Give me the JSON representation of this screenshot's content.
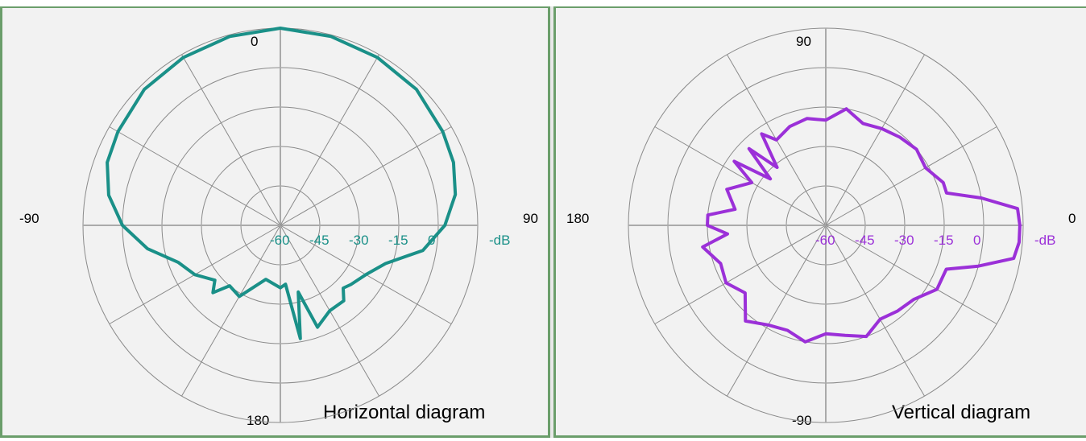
{
  "chart_data": [
    {
      "type": "polar-line",
      "title": "Horizontal diagram",
      "angle_labels": {
        "top": "0",
        "left": "-90",
        "right": "90",
        "bottom": "180"
      },
      "radial_ticks": [
        "-60",
        "-45",
        "-30",
        "-15",
        "0"
      ],
      "radial_unit": "-dB",
      "rlim": [
        -60,
        0
      ],
      "grid": true,
      "series": [
        {
          "color": "#1a9088",
          "angle_deg": [
            -180,
            -165,
            -150,
            -140,
            -135,
            -130,
            -120,
            -110,
            -100,
            -90,
            -80,
            -70,
            -60,
            -45,
            -30,
            -15,
            0,
            15,
            30,
            45,
            60,
            70,
            80,
            90,
            100,
            110,
            120,
            130,
            135,
            140,
            150,
            160,
            165,
            170,
            175,
            180
          ],
          "db": [
            -41,
            -43,
            -35,
            -36,
            -31,
            -34,
            -30,
            -27,
            -19,
            -12,
            -7,
            -4,
            -3,
            -1.5,
            -1,
            -0.5,
            0,
            -0.5,
            -1,
            -1.5,
            -3,
            -4,
            -6,
            -10,
            -16,
            -26,
            -30,
            -32,
            -33,
            -30,
            -30,
            -27,
            -39,
            -25,
            -42,
            -41
          ]
        }
      ]
    },
    {
      "type": "polar-line",
      "title": "Vertical diagram",
      "angle_labels": {
        "top": "90",
        "left": "180",
        "right": "0",
        "bottom": "-90"
      },
      "radial_ticks": [
        "-60",
        "-45",
        "-30",
        "-15",
        "0"
      ],
      "radial_unit": "-dB",
      "rlim": [
        -60,
        0
      ],
      "grid": true,
      "series": [
        {
          "color": "#9b30d8",
          "angle_deg": [
            0,
            5,
            10,
            15,
            20,
            30,
            40,
            50,
            60,
            70,
            80,
            90,
            100,
            110,
            120,
            125,
            130,
            135,
            140,
            145,
            150,
            160,
            170,
            175,
            180,
            185,
            190,
            200,
            210,
            220,
            230,
            240,
            250,
            260,
            270,
            280,
            290,
            300,
            310,
            320,
            330,
            340,
            345,
            350,
            355
          ],
          "db": [
            -1,
            -1.5,
            -12,
            -22,
            -22,
            -25,
            -24,
            -25,
            -26,
            -27,
            -24,
            -28,
            -27,
            -28,
            -30,
            -26,
            -37,
            -27,
            -38,
            -26,
            -34,
            -28,
            -32,
            -24,
            -24,
            -30,
            -22,
            -26,
            -25,
            -28,
            -22,
            -25,
            -26,
            -24,
            -27,
            -26,
            -24,
            -27,
            -26,
            -25,
            -21,
            -21,
            -12,
            -2,
            -1
          ]
        }
      ]
    }
  ]
}
